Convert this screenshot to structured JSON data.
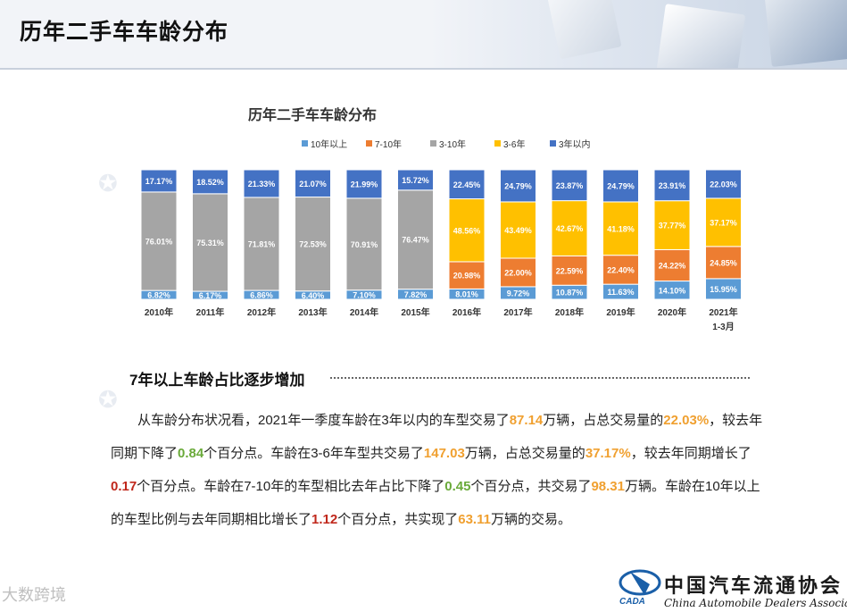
{
  "page": {
    "title": "历年二手车车龄分布"
  },
  "section": {
    "title": "7年以上车龄占比逐步增加"
  },
  "paragraph": {
    "s1": "从车龄分布状况看，2021年一季度车龄在3年以内的车型交易了",
    "v1": "87.14",
    "s2": "万辆，占总交易量的",
    "v2": "22.03%",
    "s3": "，较去年同期下降了",
    "v3": "0.84",
    "s4": "个百分点。车龄在3-6年车型共交易了",
    "v4": "147.03",
    "s5": "万辆，占总交易量的",
    "v5": "37.17%",
    "s6": "，较去年同期增长了",
    "v6": "0.17",
    "s7": "个百分点。车龄在7-10年的车型相比去年占比下降了",
    "v7": "0.45",
    "s8": "个百分点，共交易了",
    "v8": "98.31",
    "s9": "万辆。车龄在10年以上的车型比例与去年同期相比增长了",
    "v9": "1.12",
    "s10": "个百分点，共实现了",
    "v10": "63.11",
    "s11": "万辆的交易。"
  },
  "logo": {
    "cn": "中国汽车流通协会",
    "en": "China Automobile Dealers Association",
    "abbr": "CADA"
  },
  "brand": "大数跨境",
  "colors": {
    "blue": "#4a7ec4",
    "orange": "#ed7d31",
    "gray": "#a5a5a5",
    "yellow": "#ffc000",
    "dark_blue": "#4472c4"
  },
  "chart_data": {
    "type": "bar",
    "stacked": "100%",
    "title": "历年二手车车龄分布",
    "categories": [
      "2010年",
      "2011年",
      "2012年",
      "2013年",
      "2014年",
      "2015年",
      "2016年",
      "2017年",
      "2018年",
      "2019年",
      "2020年",
      "2021年\n1-3月"
    ],
    "legend_position": "top",
    "series": [
      {
        "name": "10年以上",
        "color": "#5b9bd5",
        "values": [
          6.82,
          6.17,
          6.86,
          6.4,
          7.1,
          7.82,
          8.01,
          9.72,
          10.87,
          11.63,
          14.1,
          15.95
        ],
        "labels": [
          "6.82%",
          "6.17%",
          "6.86%",
          "6.40%",
          "7.10%",
          "7.82%",
          "8.01%",
          "9.72%",
          "10.87%",
          "11.63%",
          "14.10%",
          "15.95%"
        ]
      },
      {
        "name": "7-10年",
        "color": "#ed7d31",
        "values": [
          null,
          null,
          null,
          null,
          null,
          null,
          20.98,
          22.0,
          22.59,
          22.4,
          24.22,
          24.85
        ],
        "labels": [
          "",
          "",
          "",
          "",
          "",
          "",
          "20.98%",
          "22.00%",
          "22.59%",
          "22.40%",
          "24.22%",
          "24.85%"
        ]
      },
      {
        "name": "3-10年",
        "color": "#a5a5a5",
        "values": [
          76.01,
          75.31,
          71.81,
          72.53,
          70.91,
          76.47,
          null,
          null,
          null,
          null,
          null,
          null
        ],
        "labels": [
          "76.01%",
          "75.31%",
          "71.81%",
          "72.53%",
          "70.91%",
          "76.47%",
          "",
          "",
          "",
          "",
          "",
          ""
        ]
      },
      {
        "name": "3-6年",
        "color": "#ffc000",
        "values": [
          null,
          null,
          null,
          null,
          null,
          null,
          48.56,
          43.49,
          42.67,
          41.18,
          37.77,
          37.17
        ],
        "labels": [
          "",
          "",
          "",
          "",
          "",
          "",
          "48.56%",
          "43.49%",
          "42.67%",
          "41.18%",
          "37.77%",
          "37.17%"
        ]
      },
      {
        "name": "3年以内",
        "color": "#4472c4",
        "values": [
          17.17,
          18.52,
          21.33,
          21.07,
          21.99,
          15.72,
          22.45,
          24.79,
          23.87,
          24.79,
          23.91,
          22.03
        ],
        "labels": [
          "17.17%",
          "18.52%",
          "21.33%",
          "21.07%",
          "21.99%",
          "15.72%",
          "22.45%",
          "24.79%",
          "23.87%",
          "24.79%",
          "23.91%",
          "22.03%"
        ]
      }
    ]
  }
}
